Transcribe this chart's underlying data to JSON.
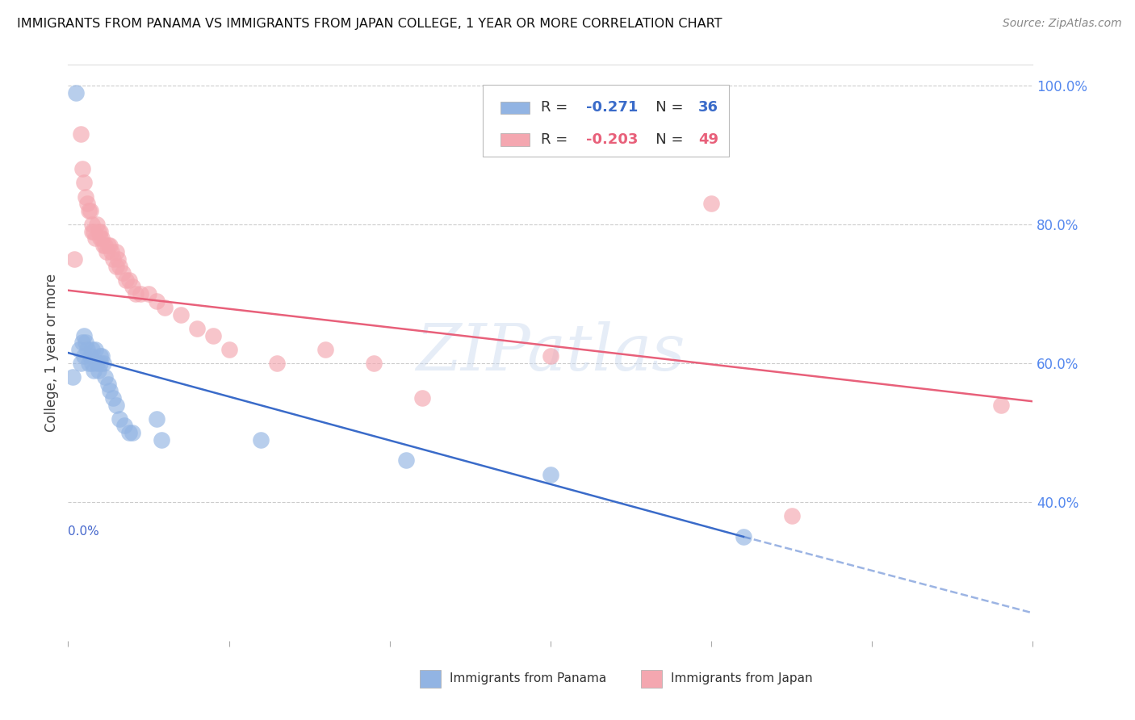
{
  "title": "IMMIGRANTS FROM PANAMA VS IMMIGRANTS FROM JAPAN COLLEGE, 1 YEAR OR MORE CORRELATION CHART",
  "source": "Source: ZipAtlas.com",
  "ylabel": "College, 1 year or more",
  "xmin": 0.0,
  "xmax": 0.6,
  "ymin": 0.2,
  "ymax": 1.03,
  "right_yticks": [
    1.0,
    0.8,
    0.6,
    0.4
  ],
  "right_yticklabels": [
    "100.0%",
    "80.0%",
    "60.0%",
    "40.0%"
  ],
  "xtick_vals": [
    0.0,
    0.1,
    0.2,
    0.3,
    0.4,
    0.5,
    0.6
  ],
  "legend_R_panama": "-0.271",
  "legend_N_panama": "36",
  "legend_R_japan": "-0.203",
  "legend_N_japan": "49",
  "color_panama": "#92B4E3",
  "color_japan": "#F4A7B0",
  "color_trendline_panama": "#3A6BC9",
  "color_trendline_japan": "#E8607A",
  "watermark": "ZIPatlas",
  "panama_x": [
    0.003,
    0.005,
    0.007,
    0.008,
    0.009,
    0.01,
    0.01,
    0.011,
    0.012,
    0.013,
    0.014,
    0.015,
    0.015,
    0.016,
    0.017,
    0.018,
    0.019,
    0.02,
    0.02,
    0.021,
    0.022,
    0.023,
    0.025,
    0.026,
    0.028,
    0.03,
    0.032,
    0.035,
    0.038,
    0.04,
    0.055,
    0.058,
    0.12,
    0.21,
    0.3,
    0.42
  ],
  "panama_y": [
    0.58,
    0.99,
    0.62,
    0.6,
    0.63,
    0.64,
    0.61,
    0.63,
    0.62,
    0.6,
    0.61,
    0.62,
    0.6,
    0.59,
    0.62,
    0.6,
    0.59,
    0.61,
    0.6,
    0.61,
    0.6,
    0.58,
    0.57,
    0.56,
    0.55,
    0.54,
    0.52,
    0.51,
    0.5,
    0.5,
    0.52,
    0.49,
    0.49,
    0.46,
    0.44,
    0.35
  ],
  "japan_x": [
    0.004,
    0.008,
    0.009,
    0.01,
    0.011,
    0.012,
    0.013,
    0.014,
    0.015,
    0.015,
    0.016,
    0.017,
    0.018,
    0.019,
    0.02,
    0.02,
    0.021,
    0.022,
    0.023,
    0.024,
    0.025,
    0.026,
    0.027,
    0.028,
    0.03,
    0.03,
    0.031,
    0.032,
    0.034,
    0.036,
    0.038,
    0.04,
    0.042,
    0.045,
    0.05,
    0.055,
    0.06,
    0.07,
    0.08,
    0.09,
    0.1,
    0.13,
    0.16,
    0.19,
    0.22,
    0.3,
    0.4,
    0.45,
    0.58
  ],
  "japan_y": [
    0.75,
    0.93,
    0.88,
    0.86,
    0.84,
    0.83,
    0.82,
    0.82,
    0.8,
    0.79,
    0.79,
    0.78,
    0.8,
    0.79,
    0.79,
    0.78,
    0.78,
    0.77,
    0.77,
    0.76,
    0.77,
    0.77,
    0.76,
    0.75,
    0.74,
    0.76,
    0.75,
    0.74,
    0.73,
    0.72,
    0.72,
    0.71,
    0.7,
    0.7,
    0.7,
    0.69,
    0.68,
    0.67,
    0.65,
    0.64,
    0.62,
    0.6,
    0.62,
    0.6,
    0.55,
    0.61,
    0.83,
    0.38,
    0.54
  ],
  "trendline_pan_x0": 0.0,
  "trendline_pan_y0": 0.615,
  "trendline_pan_x1": 0.42,
  "trendline_pan_y1": 0.35,
  "trendline_pan_dash_x1": 0.6,
  "trendline_pan_dash_y1": 0.24,
  "trendline_jap_x0": 0.0,
  "trendline_jap_y0": 0.705,
  "trendline_jap_x1": 0.6,
  "trendline_jap_y1": 0.545
}
